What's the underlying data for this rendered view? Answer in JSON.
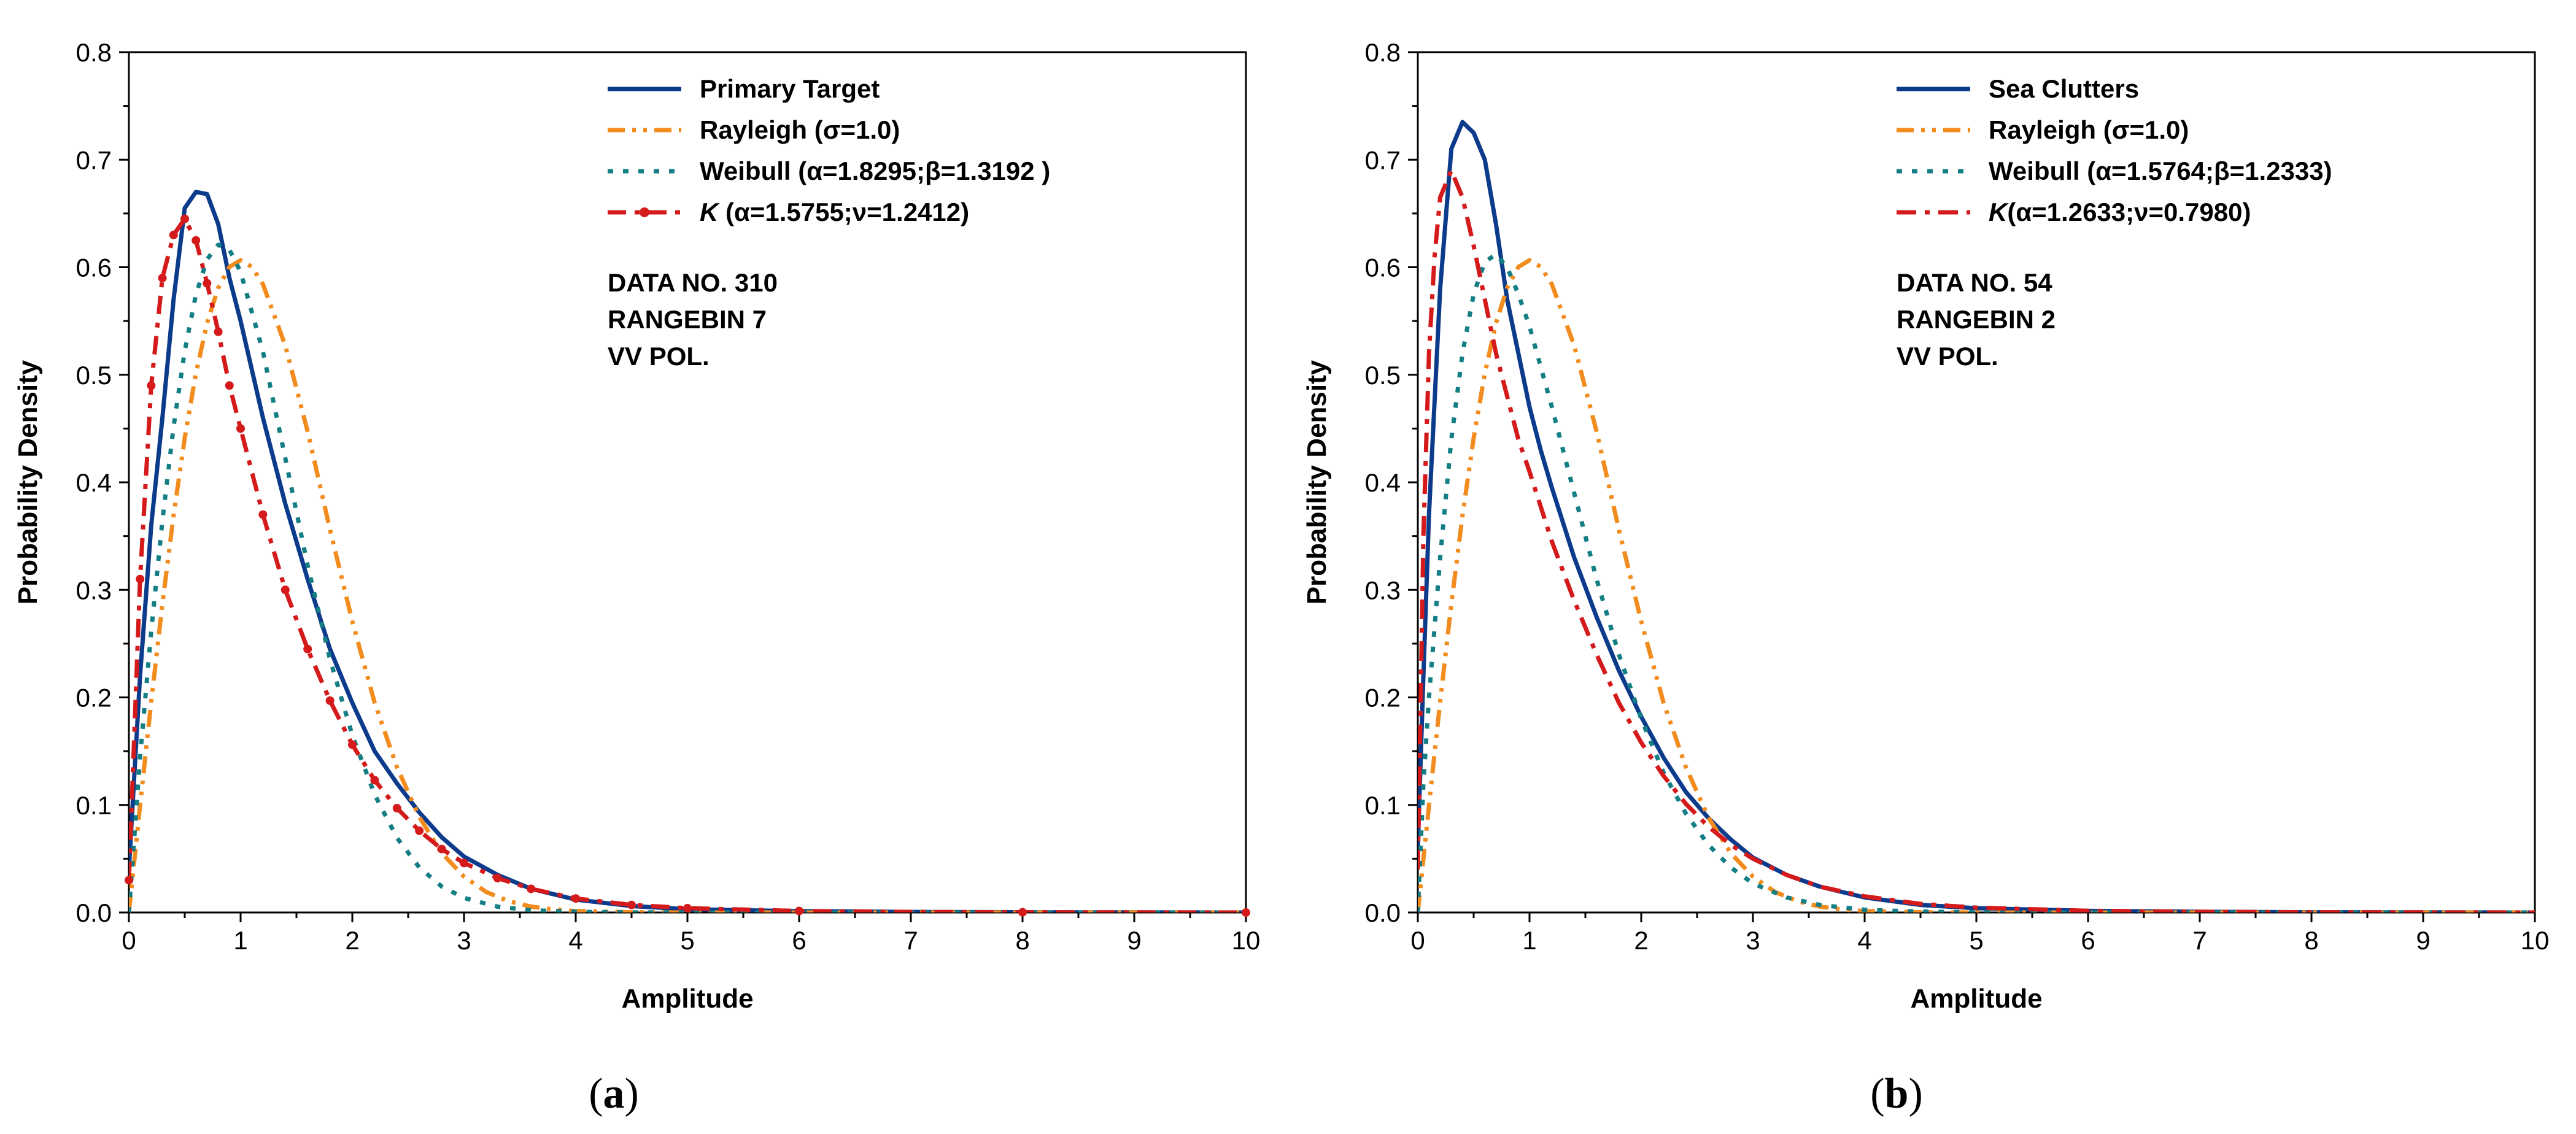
{
  "chart_data": [
    {
      "type": "line",
      "caption_letter": "a",
      "xlabel": "Amplitude",
      "ylabel": "Probability Density",
      "xlim": [
        0,
        10
      ],
      "ylim": [
        0,
        0.8
      ],
      "x_ticks": [
        "0",
        "1",
        "2",
        "3",
        "4",
        "5",
        "6",
        "7",
        "8",
        "9",
        "10"
      ],
      "y_ticks": [
        "0.0",
        "0.1",
        "0.2",
        "0.3",
        "0.4",
        "0.5",
        "0.6",
        "0.7",
        "0.8"
      ],
      "legend_position": "top-right",
      "annotations": [
        "DATA NO. 310",
        "RANGEBIN 7",
        "VV POL."
      ],
      "series": [
        {
          "name": "Primary Target",
          "label_prefix": "",
          "label_rest": "Primary Target",
          "style": "solid",
          "color": "#0d3b8c",
          "x": [
            0,
            0.1,
            0.2,
            0.3,
            0.4,
            0.5,
            0.6,
            0.7,
            0.8,
            0.9,
            1.0,
            1.2,
            1.4,
            1.6,
            1.8,
            2.0,
            2.2,
            2.4,
            2.6,
            2.8,
            3.0,
            3.3,
            3.6,
            4.0,
            4.5,
            5.0,
            6.0,
            7.0,
            8.0,
            9.0,
            10.0
          ],
          "y": [
            0.04,
            0.22,
            0.36,
            0.46,
            0.57,
            0.655,
            0.67,
            0.668,
            0.64,
            0.59,
            0.55,
            0.46,
            0.38,
            0.31,
            0.245,
            0.195,
            0.15,
            0.12,
            0.093,
            0.07,
            0.052,
            0.035,
            0.022,
            0.012,
            0.006,
            0.003,
            0.0012,
            0.0005,
            0.0002,
            0.0001,
            0.0
          ]
        },
        {
          "name": "Rayleigh (σ=1.0)",
          "label_prefix": "",
          "label_rest": "Rayleigh (σ=1.0)",
          "style": "dashdotdot",
          "color": "#f28c1e",
          "x": [
            0,
            0.1,
            0.2,
            0.3,
            0.4,
            0.5,
            0.6,
            0.7,
            0.8,
            0.9,
            1.0,
            1.1,
            1.2,
            1.4,
            1.6,
            1.8,
            2.0,
            2.2,
            2.4,
            2.6,
            2.8,
            3.0,
            3.2,
            3.4,
            3.6,
            3.8,
            4.0,
            4.5,
            5.0,
            6.0,
            7.0,
            8.0,
            9.0,
            10.0
          ],
          "y": [
            0,
            0.0995,
            0.196,
            0.2869,
            0.3692,
            0.4412,
            0.5012,
            0.5482,
            0.5809,
            0.6003,
            0.6065,
            0.6004,
            0.5842,
            0.5272,
            0.4474,
            0.3562,
            0.2707,
            0.1951,
            0.1351,
            0.0887,
            0.0554,
            0.0333,
            0.019,
            0.0105,
            0.0055,
            0.0028,
            0.0013,
            0.0002,
            0.0,
            0.0,
            0.0,
            0.0,
            0.0,
            0.0
          ]
        },
        {
          "name": "Weibull (α=1.8295;β=1.3192 )",
          "label_prefix": "",
          "label_rest": "Weibull (α=1.8295;β=1.3192 )",
          "style": "dotted",
          "color": "#137e84",
          "x": [
            0,
            0.1,
            0.2,
            0.3,
            0.4,
            0.5,
            0.6,
            0.7,
            0.8,
            0.9,
            1.0,
            1.2,
            1.4,
            1.6,
            1.8,
            2.0,
            2.2,
            2.4,
            2.6,
            2.8,
            3.0,
            3.3,
            3.6,
            4.0,
            4.5,
            5.0,
            6.0,
            7.0,
            8.0,
            9.0,
            10.0
          ],
          "y": [
            0,
            0.1443,
            0.2619,
            0.3644,
            0.4517,
            0.5222,
            0.5745,
            0.6073,
            0.6209,
            0.6163,
            0.5957,
            0.5215,
            0.4225,
            0.3228,
            0.2356,
            0.1648,
            0.1096,
            0.0694,
            0.0419,
            0.0242,
            0.0135,
            0.0054,
            0.0021,
            0.0006,
            0.0001,
            0.0,
            0.0,
            0.0,
            0.0,
            0.0,
            0.0
          ]
        },
        {
          "name": "K (α=1.5755;ν=1.2412)",
          "label_prefix": "K",
          "label_rest": " (α=1.5755;ν=1.2412)",
          "style": "dashdot-marker",
          "color": "#d41a1a",
          "x": [
            0,
            0.1,
            0.2,
            0.3,
            0.4,
            0.5,
            0.6,
            0.7,
            0.8,
            0.9,
            1.0,
            1.2,
            1.4,
            1.6,
            1.8,
            2.0,
            2.2,
            2.4,
            2.6,
            2.8,
            3.0,
            3.3,
            3.6,
            4.0,
            4.5,
            5.0,
            6.0,
            7.0,
            8.0,
            9.0,
            10.0
          ],
          "y": [
            0.03,
            0.31,
            0.49,
            0.59,
            0.63,
            0.645,
            0.625,
            0.585,
            0.54,
            0.49,
            0.45,
            0.37,
            0.3,
            0.245,
            0.197,
            0.156,
            0.123,
            0.097,
            0.076,
            0.059,
            0.046,
            0.032,
            0.022,
            0.013,
            0.007,
            0.004,
            0.0014,
            0.0005,
            0.0002,
            0.0001,
            0.0
          ]
        }
      ]
    },
    {
      "type": "line",
      "caption_letter": "b",
      "xlabel": "Amplitude",
      "ylabel": "Probability Density",
      "xlim": [
        0,
        10
      ],
      "ylim": [
        0,
        0.8
      ],
      "x_ticks": [
        "0",
        "1",
        "2",
        "3",
        "4",
        "5",
        "6",
        "7",
        "8",
        "9",
        "10"
      ],
      "y_ticks": [
        "0.0",
        "0.1",
        "0.2",
        "0.3",
        "0.4",
        "0.5",
        "0.6",
        "0.7",
        "0.8"
      ],
      "legend_position": "top-right",
      "annotations": [
        "DATA NO. 54",
        "RANGEBIN 2",
        "VV POL."
      ],
      "series": [
        {
          "name": "Sea Clutters",
          "label_prefix": "",
          "label_rest": "Sea Clutters",
          "style": "solid",
          "color": "#0d3b8c",
          "x": [
            0,
            0.05,
            0.1,
            0.2,
            0.3,
            0.4,
            0.5,
            0.6,
            0.7,
            0.8,
            0.9,
            1.0,
            1.1,
            1.2,
            1.4,
            1.6,
            1.8,
            2.0,
            2.2,
            2.4,
            2.6,
            2.8,
            3.0,
            3.3,
            3.6,
            4.0,
            4.5,
            5.0,
            6.0,
            7.0,
            8.0,
            9.0,
            10.0
          ],
          "y": [
            0.06,
            0.22,
            0.37,
            0.58,
            0.71,
            0.735,
            0.725,
            0.7,
            0.64,
            0.57,
            0.52,
            0.47,
            0.43,
            0.395,
            0.33,
            0.275,
            0.225,
            0.182,
            0.144,
            0.112,
            0.088,
            0.068,
            0.051,
            0.035,
            0.024,
            0.014,
            0.007,
            0.004,
            0.0015,
            0.0006,
            0.0002,
            0.0001,
            0.0
          ]
        },
        {
          "name": "Rayleigh (σ=1.0)",
          "label_prefix": "",
          "label_rest": "Rayleigh (σ=1.0)",
          "style": "dashdotdot",
          "color": "#f28c1e",
          "x": [
            0,
            0.1,
            0.2,
            0.3,
            0.4,
            0.5,
            0.6,
            0.7,
            0.8,
            0.9,
            1.0,
            1.1,
            1.2,
            1.4,
            1.6,
            1.8,
            2.0,
            2.2,
            2.4,
            2.6,
            2.8,
            3.0,
            3.2,
            3.4,
            3.6,
            3.8,
            4.0,
            4.5,
            5.0,
            6.0,
            7.0,
            8.0,
            9.0,
            10.0
          ],
          "y": [
            0,
            0.0995,
            0.196,
            0.2869,
            0.3692,
            0.4412,
            0.5012,
            0.5482,
            0.5809,
            0.6003,
            0.6065,
            0.6004,
            0.5842,
            0.5272,
            0.4474,
            0.3562,
            0.2707,
            0.1951,
            0.1351,
            0.0887,
            0.0554,
            0.0333,
            0.019,
            0.0105,
            0.0055,
            0.0028,
            0.0013,
            0.0002,
            0.0,
            0.0,
            0.0,
            0.0,
            0.0,
            0.0
          ]
        },
        {
          "name": "Weibull (α=1.5764;β=1.2333)",
          "label_prefix": "",
          "label_rest": "Weibull (α=1.5764;β=1.2333)",
          "style": "dotted",
          "color": "#137e84",
          "x": [
            0,
            0.05,
            0.1,
            0.2,
            0.3,
            0.4,
            0.5,
            0.6,
            0.7,
            0.8,
            0.9,
            1.0,
            1.2,
            1.4,
            1.6,
            1.8,
            2.0,
            2.2,
            2.4,
            2.6,
            2.8,
            3.0,
            3.3,
            3.6,
            4.0,
            4.5,
            5.0,
            6.0,
            7.0,
            8.0,
            9.0,
            10.0
          ],
          "y": [
            0,
            0.12,
            0.2,
            0.33,
            0.44,
            0.52,
            0.575,
            0.605,
            0.612,
            0.6,
            0.575,
            0.545,
            0.47,
            0.39,
            0.31,
            0.24,
            0.18,
            0.13,
            0.092,
            0.063,
            0.042,
            0.027,
            0.014,
            0.007,
            0.0025,
            0.0008,
            0.0002,
            0.0,
            0.0,
            0.0,
            0.0,
            0.0
          ]
        },
        {
          "name": "K (α=1.2633;ν=0.7980)",
          "label_prefix": "K",
          "label_rest": "(α=1.2633;ν=0.7980)",
          "style": "dashdot",
          "color": "#d41a1a",
          "x": [
            0,
            0.05,
            0.1,
            0.15,
            0.2,
            0.3,
            0.4,
            0.5,
            0.6,
            0.7,
            0.8,
            0.9,
            1.0,
            1.2,
            1.4,
            1.6,
            1.8,
            2.0,
            2.2,
            2.4,
            2.6,
            2.8,
            3.0,
            3.3,
            3.6,
            4.0,
            4.5,
            5.0,
            6.0,
            7.0,
            8.0,
            9.0,
            10.0
          ],
          "y": [
            0.04,
            0.35,
            0.52,
            0.61,
            0.665,
            0.69,
            0.665,
            0.62,
            0.57,
            0.52,
            0.48,
            0.44,
            0.41,
            0.345,
            0.29,
            0.24,
            0.195,
            0.158,
            0.127,
            0.101,
            0.08,
            0.063,
            0.05,
            0.035,
            0.024,
            0.015,
            0.008,
            0.0045,
            0.0016,
            0.0006,
            0.0002,
            0.0001,
            0.0
          ]
        }
      ]
    }
  ]
}
